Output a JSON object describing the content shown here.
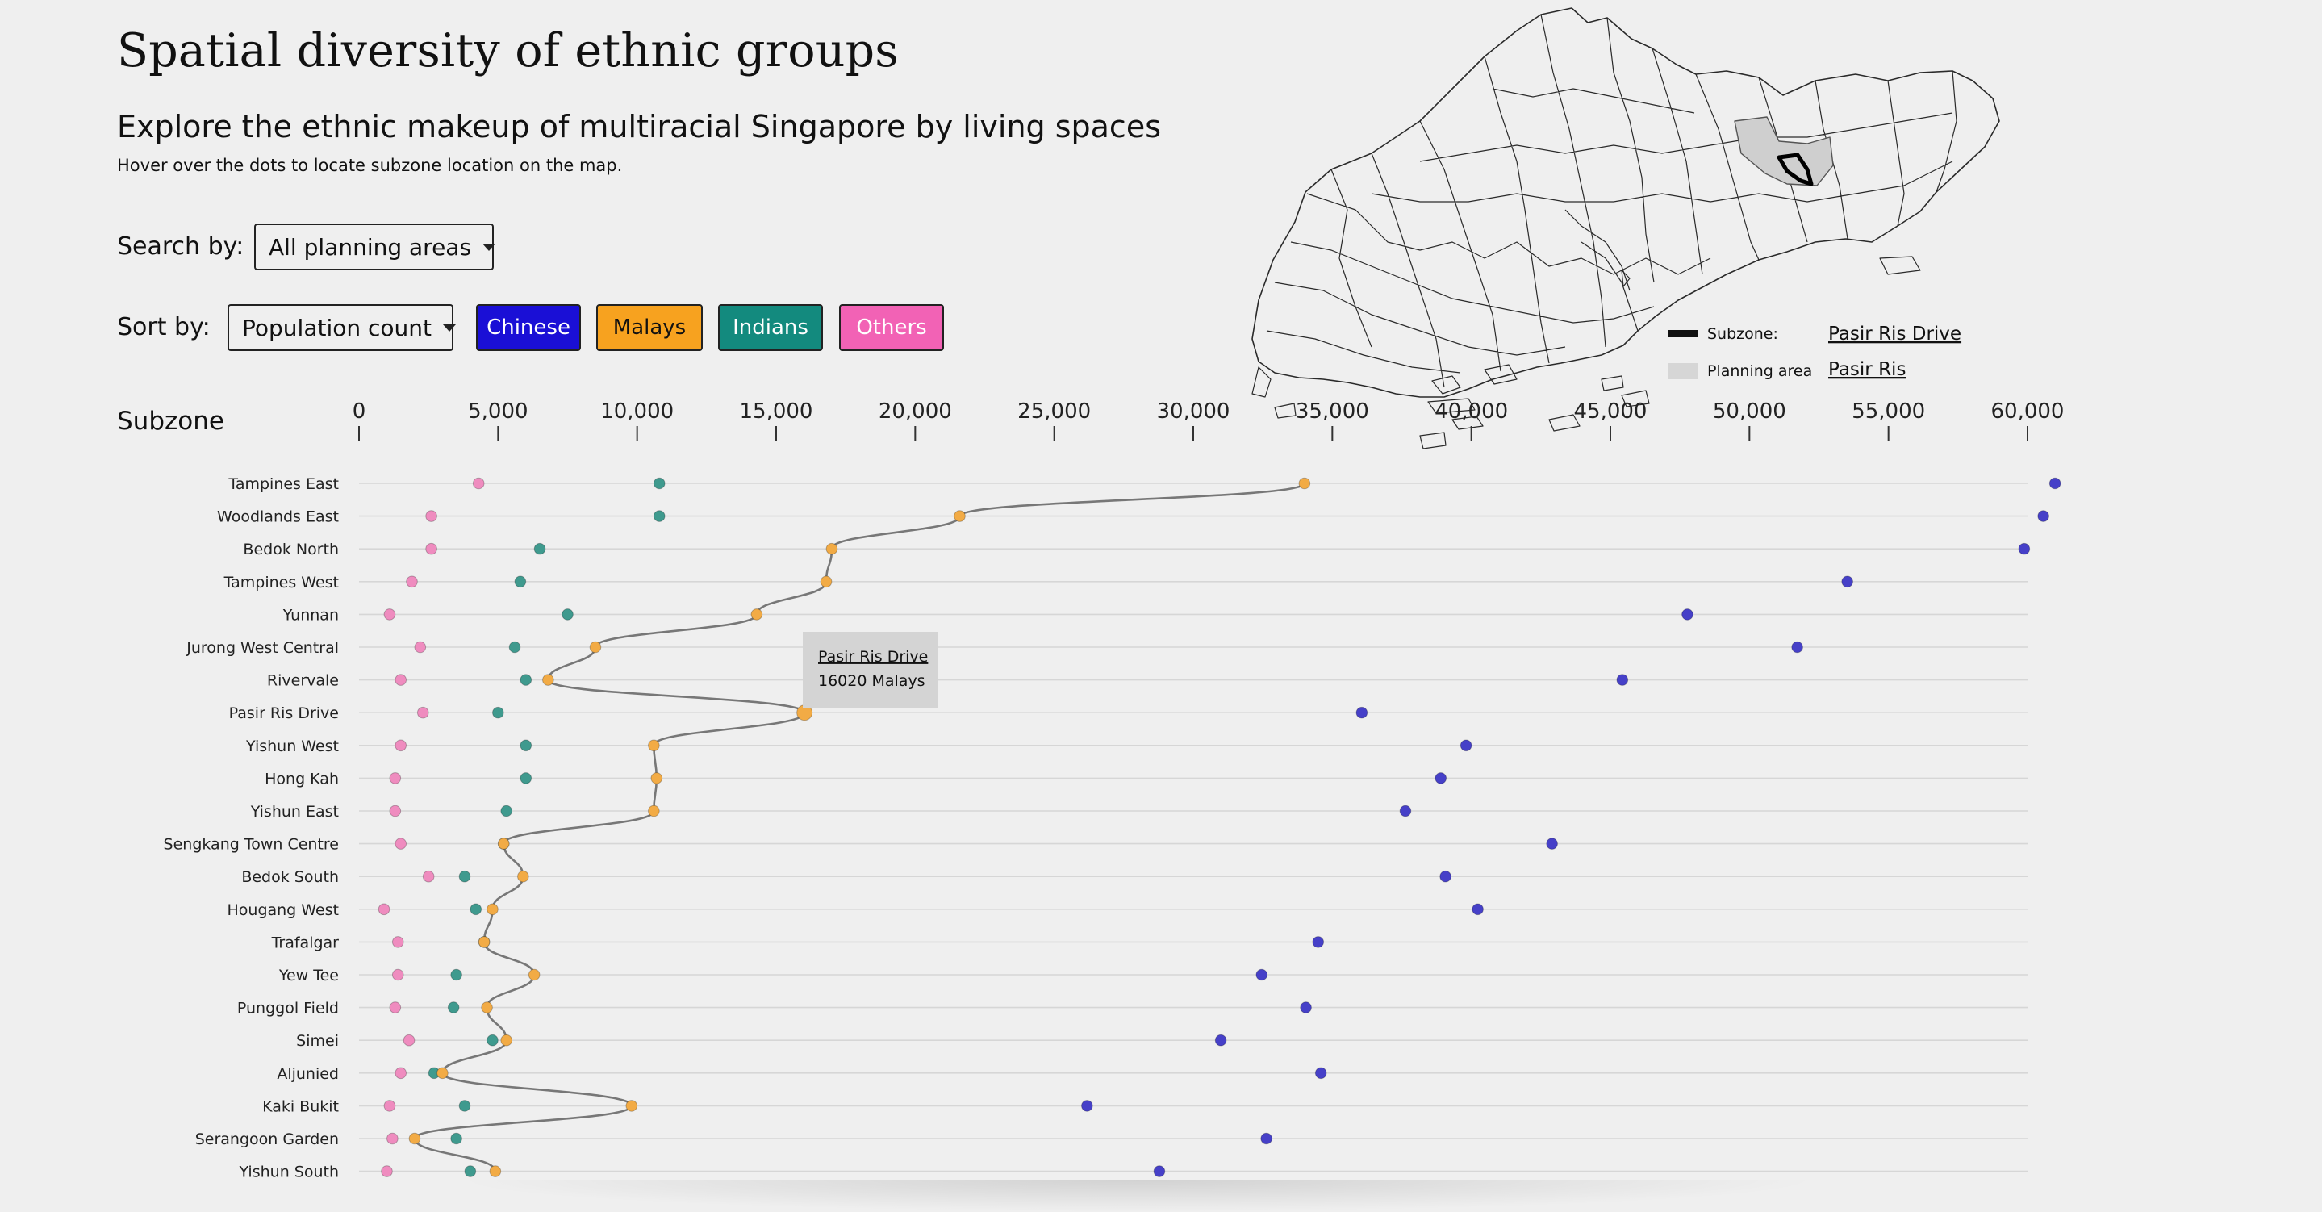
{
  "page": {
    "title": "Spatial diversity of ethnic groups",
    "subtitle": "Explore the ethnic makeup of multiracial Singapore by living spaces",
    "hint": "Hover over the dots to locate subzone location on the map."
  },
  "controls": {
    "search_label": "Search by:",
    "search_value": "All planning areas",
    "sort_label": "Sort by:",
    "sort_value": "Population count",
    "ethnic_buttons": [
      {
        "label": "Chinese",
        "bg": "#1a0fd6",
        "fg": "#ffffff"
      },
      {
        "label": "Malays",
        "bg": "#f7a21f",
        "fg": "#111111"
      },
      {
        "label": "Indians",
        "bg": "#138a7e",
        "fg": "#ffffff"
      },
      {
        "label": "Others",
        "bg": "#f262b5",
        "fg": "#ffffff"
      }
    ]
  },
  "map_legend": {
    "subzone_label": "Subzone:",
    "subzone_value": "Pasir Ris Drive",
    "planning_label": "Planning area",
    "planning_value": "Pasir Ris"
  },
  "tooltip": {
    "line1": "Pasir Ris Drive",
    "line2": "16020 Malays"
  },
  "colors": {
    "chinese": "#4640c8",
    "malays": "#f2ab45",
    "indians": "#3f9a8e",
    "others": "#ef8cbf",
    "connector": "#777777",
    "gridline": "#d6d6d6"
  },
  "chart_data": {
    "type": "scatter",
    "y_axis_label": "Subzone",
    "xlim": [
      0,
      60000
    ],
    "x_ticks": [
      "0",
      "5,000",
      "10,000",
      "15,000",
      "20,000",
      "25,000",
      "30,000",
      "35,000",
      "40,000",
      "45,000",
      "50,000",
      "55,000",
      "60,000"
    ],
    "x_tick_values": [
      0,
      5000,
      10000,
      15000,
      20000,
      25000,
      30000,
      35000,
      40000,
      45000,
      50000,
      55000,
      60000
    ],
    "highlight_subzone": "Pasir Ris Drive",
    "categories": [
      "Tampines East",
      "Woodlands East",
      "Bedok North",
      "Tampines West",
      "Yunnan",
      "Jurong West Central",
      "Rivervale",
      "Pasir Ris Drive",
      "Yishun West",
      "Hong Kah",
      "Yishun East",
      "Sengkang Town Centre",
      "Bedok South",
      "Hougang West",
      "Trafalgar",
      "Yew Tee",
      "Punggol Field",
      "Simei",
      "Aljunied",
      "Kaki Bukit",
      "Serangoon Garden",
      "Yishun South"
    ],
    "series": [
      {
        "name": "Chinese",
        "values": [
          60990,
          60570,
          59880,
          53520,
          47770,
          51720,
          45430,
          36060,
          39810,
          38900,
          37630,
          42900,
          39070,
          40230,
          34490,
          32460,
          34050,
          30990,
          34590,
          26180,
          32630,
          28780
        ]
      },
      {
        "name": "Malays",
        "values": [
          34000,
          21600,
          17000,
          16800,
          14300,
          8500,
          6800,
          16020,
          10600,
          10700,
          10600,
          5200,
          5900,
          4800,
          4500,
          6300,
          4600,
          5300,
          3000,
          9800,
          2000,
          4900
        ]
      },
      {
        "name": "Indians",
        "values": [
          10800,
          10800,
          6500,
          5800,
          7500,
          5600,
          6000,
          5000,
          6000,
          6000,
          5300,
          5200,
          3800,
          4200,
          4500,
          3500,
          3400,
          4800,
          2700,
          3800,
          3500,
          4000
        ]
      },
      {
        "name": "Others",
        "values": [
          4300,
          2600,
          2600,
          1900,
          1100,
          2200,
          1500,
          2300,
          1500,
          1300,
          1300,
          1500,
          2500,
          900,
          1400,
          1400,
          1300,
          1800,
          1500,
          1100,
          1200,
          1000
        ]
      }
    ]
  }
}
